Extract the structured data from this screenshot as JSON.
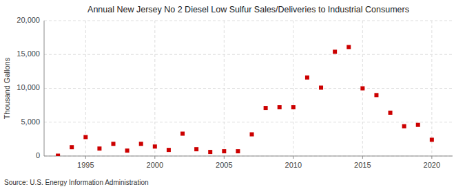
{
  "chart_data": {
    "type": "scatter",
    "title": "Annual New Jersey No 2 Diesel Low Sulfur Sales/Deliveries to Industrial Consumers",
    "ylabel": "Thousand Gallons",
    "source": "Source: U.S. Energy Information Administration",
    "x": [
      1993,
      1994,
      1995,
      1996,
      1997,
      1998,
      1999,
      2000,
      2001,
      2002,
      2003,
      2004,
      2005,
      2006,
      2007,
      2008,
      2009,
      2010,
      2011,
      2012,
      2013,
      2014,
      2015,
      2016,
      2017,
      2018,
      2019,
      2020
    ],
    "values": [
      50,
      1300,
      2800,
      1100,
      1800,
      800,
      1800,
      1400,
      900,
      3300,
      1000,
      600,
      700,
      700,
      3200,
      7100,
      7200,
      7200,
      11600,
      10100,
      15400,
      16100,
      10000,
      9000,
      6400,
      4400,
      4600,
      2400
    ],
    "color": "#cc0000",
    "marker": "square",
    "xlim": [
      1992,
      2021.5
    ],
    "ylim": [
      0,
      20000
    ],
    "xticks": [
      1995,
      2000,
      2005,
      2010,
      2015,
      2020
    ],
    "yticks": [
      0,
      {
        "value": 5000,
        "label": "5,000"
      },
      {
        "value": 10000,
        "label": "10,000"
      },
      {
        "value": 15000,
        "label": "15,000"
      },
      {
        "value": 20000,
        "label": "20,000"
      }
    ],
    "grid": true
  }
}
